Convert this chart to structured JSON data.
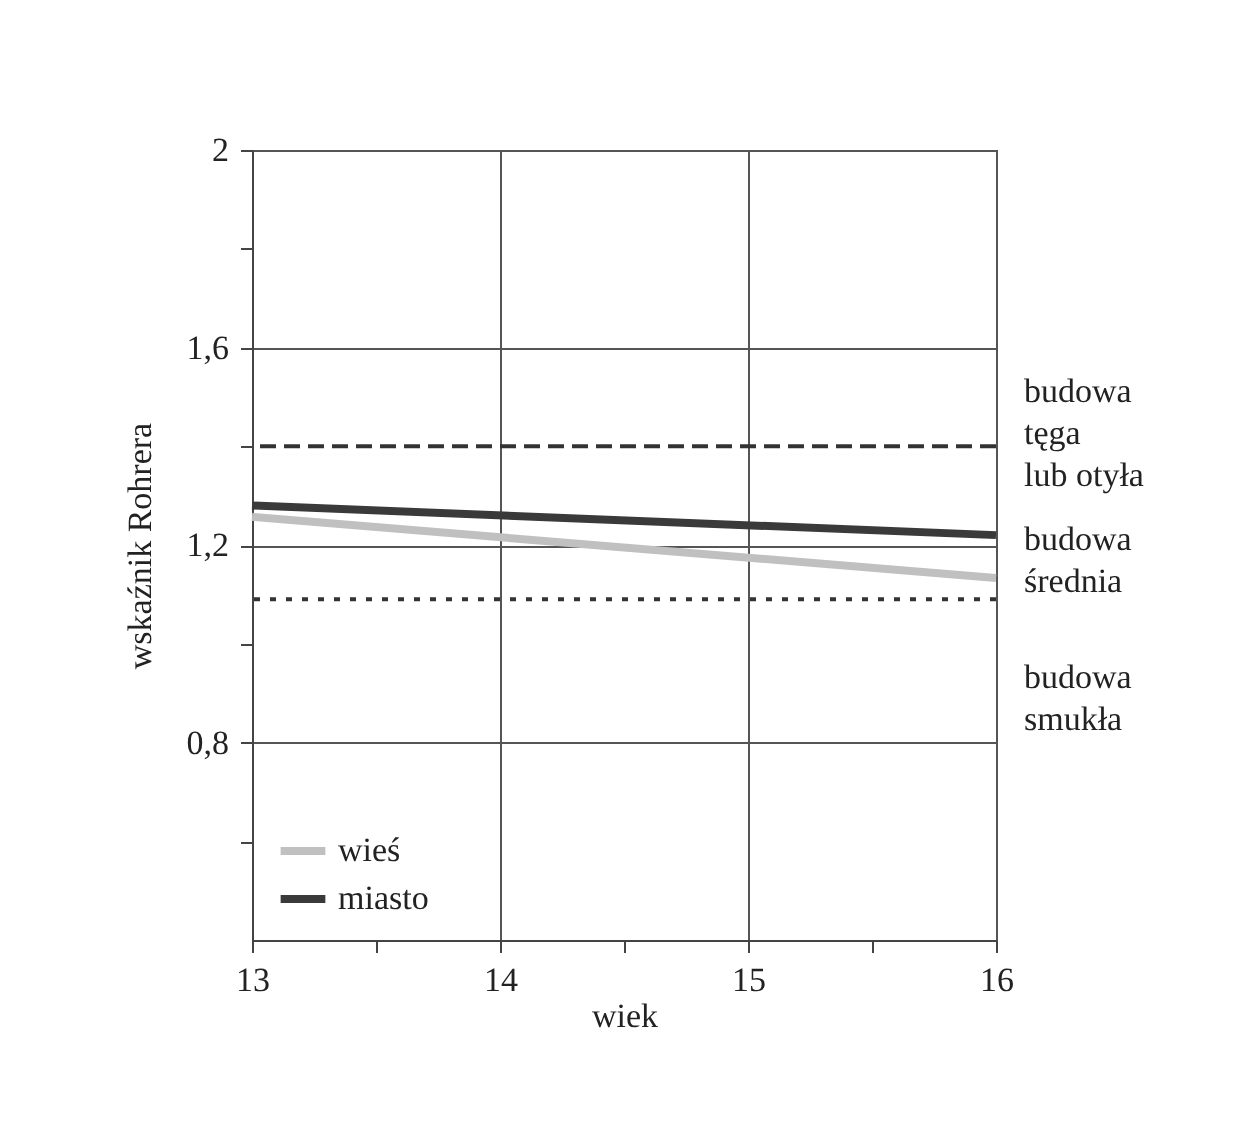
{
  "chart_data": {
    "type": "line",
    "xlabel": "wiek",
    "ylabel": "wskaźnik Rohrera",
    "x": [
      13,
      16
    ],
    "series": [
      {
        "name": "wieś",
        "color": "#c0c0c0",
        "values": [
          1.257,
          1.133
        ]
      },
      {
        "name": "miasto",
        "color": "#3a3a3a",
        "values": [
          1.28,
          1.22
        ]
      }
    ],
    "xlim": [
      13,
      16
    ],
    "xticks": [
      13,
      {
        "value": 13.5,
        "label": null
      },
      14,
      {
        "value": 14.5,
        "label": null
      },
      15,
      {
        "value": 15.5,
        "label": null
      },
      16
    ],
    "ylim": [
      0.4,
      2
    ],
    "yticks": [
      {
        "value": 0.6,
        "label": null
      },
      {
        "value": 0.8,
        "label": "0,8"
      },
      {
        "value": 1.0,
        "label": null
      },
      {
        "value": 1.2,
        "label": "1,2"
      },
      {
        "value": 1.4,
        "label": null
      },
      {
        "value": 1.6,
        "label": "1,6"
      },
      {
        "value": 1.8,
        "label": null
      },
      2
    ],
    "ref_lines": [
      {
        "axis": "y",
        "value": 1.4,
        "color": "#333333",
        "line_style": "dashed"
      },
      {
        "axis": "y",
        "value": 1.09,
        "color": "#333333",
        "line_style": "dotted"
      }
    ],
    "annotations": [
      "budowa\ntęga\nlub otyła",
      "budowa\nśrednia",
      "budowa\nsmukła"
    ],
    "grid": true,
    "legend": "bottom left",
    "line_style": "solid",
    "marker": "none"
  }
}
